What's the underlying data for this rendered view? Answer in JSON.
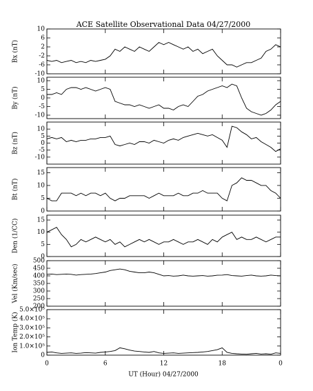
{
  "chart_data": [
    {
      "type": "line",
      "title": "ACE Satellite Observational Data   04/27/2000",
      "ylabel": "Bx (nT)",
      "xlim": [
        0,
        24
      ],
      "ylim": [
        -10,
        10
      ],
      "yticks": [
        -10,
        -6,
        -2,
        2,
        6,
        10
      ],
      "x": [
        0,
        0.5,
        1,
        1.5,
        2,
        2.5,
        3,
        3.5,
        4,
        4.5,
        5,
        5.5,
        6,
        6.5,
        7,
        7.5,
        8,
        8.5,
        9,
        9.5,
        10,
        10.5,
        11,
        11.5,
        12,
        12.5,
        13,
        13.5,
        14,
        14.5,
        15,
        15.5,
        16,
        16.5,
        17,
        17.5,
        18,
        18.5,
        19,
        19.5,
        20,
        20.5,
        21,
        21.5,
        22,
        22.5,
        23,
        23.5,
        24
      ],
      "series": [
        {
          "color": "#000000",
          "values": [
            -4,
            -4.5,
            -4,
            -5,
            -4.5,
            -4,
            -5,
            -4.5,
            -5,
            -4,
            -4.5,
            -4,
            -3.5,
            -2,
            1,
            0,
            2,
            1,
            0,
            2,
            1,
            0,
            2,
            4,
            3,
            4,
            3,
            2,
            1,
            2,
            0,
            1,
            -1,
            0,
            1,
            -2,
            -4,
            -6,
            -6,
            -7,
            -6,
            -5,
            -5,
            -4,
            -3,
            0,
            1,
            3,
            2
          ]
        }
      ]
    },
    {
      "type": "line",
      "ylabel": "By (nT)",
      "xlim": [
        0,
        24
      ],
      "ylim": [
        -12,
        12
      ],
      "yticks": [
        -10,
        -5,
        0,
        5,
        10
      ],
      "x": [
        0,
        0.5,
        1,
        1.5,
        2,
        2.5,
        3,
        3.5,
        4,
        4.5,
        5,
        5.5,
        6,
        6.5,
        7,
        7.5,
        8,
        8.5,
        9,
        9.5,
        10,
        10.5,
        11,
        11.5,
        12,
        12.5,
        13,
        13.5,
        14,
        14.5,
        15,
        15.5,
        16,
        16.5,
        17,
        17.5,
        18,
        18.5,
        19,
        19.5,
        20,
        20.5,
        21,
        21.5,
        22,
        22.5,
        23,
        23.5,
        24
      ],
      "series": [
        {
          "color": "#000000",
          "values": [
            2,
            2,
            3,
            2,
            5,
            6,
            6,
            5,
            6,
            5,
            4,
            5,
            6,
            5,
            -2,
            -3,
            -4,
            -4,
            -5,
            -4,
            -5,
            -6,
            -5,
            -4,
            -6,
            -6,
            -7,
            -5,
            -4,
            -5,
            -2,
            1,
            2,
            4,
            5,
            6,
            7,
            6,
            8,
            7,
            0,
            -6,
            -8,
            -9,
            -10,
            -9,
            -7,
            -4,
            -2
          ]
        }
      ]
    },
    {
      "type": "line",
      "ylabel": "Bz (nT)",
      "xlim": [
        0,
        24
      ],
      "ylim": [
        -15,
        15
      ],
      "yticks": [
        -10,
        -5,
        0,
        5,
        10
      ],
      "x": [
        0,
        0.5,
        1,
        1.5,
        2,
        2.5,
        3,
        3.5,
        4,
        4.5,
        5,
        5.5,
        6,
        6.5,
        7,
        7.5,
        8,
        8.5,
        9,
        9.5,
        10,
        10.5,
        11,
        11.5,
        12,
        12.5,
        13,
        13.5,
        14,
        14.5,
        15,
        15.5,
        16,
        16.5,
        17,
        17.5,
        18,
        18.5,
        19,
        19.5,
        20,
        20.5,
        21,
        21.5,
        22,
        22.5,
        23,
        23.5,
        24
      ],
      "series": [
        {
          "color": "#000000",
          "values": [
            3,
            4,
            3,
            4,
            1,
            2,
            1,
            2,
            2,
            3,
            3,
            4,
            4,
            5,
            -1,
            -2,
            -1,
            0,
            -1,
            1,
            1,
            0,
            2,
            1,
            0,
            2,
            3,
            2,
            4,
            5,
            6,
            7,
            6,
            5,
            6,
            4,
            2,
            -3,
            12,
            11,
            8,
            6,
            3,
            4,
            1,
            -1,
            -3,
            -6,
            -4
          ]
        }
      ]
    },
    {
      "type": "line",
      "ylabel": "Bt (nT)",
      "xlim": [
        0,
        24
      ],
      "ylim": [
        0,
        17
      ],
      "yticks": [
        0,
        5,
        10,
        15
      ],
      "x": [
        0,
        0.5,
        1,
        1.5,
        2,
        2.5,
        3,
        3.5,
        4,
        4.5,
        5,
        5.5,
        6,
        6.5,
        7,
        7.5,
        8,
        8.5,
        9,
        9.5,
        10,
        10.5,
        11,
        11.5,
        12,
        12.5,
        13,
        13.5,
        14,
        14.5,
        15,
        15.5,
        16,
        16.5,
        17,
        17.5,
        18,
        18.5,
        19,
        19.5,
        20,
        20.5,
        21,
        21.5,
        22,
        22.5,
        23,
        23.5,
        24
      ],
      "series": [
        {
          "color": "#000000",
          "values": [
            5,
            4,
            4,
            7,
            7,
            7,
            6,
            7,
            6,
            7,
            7,
            6,
            7,
            5,
            4,
            5,
            5,
            6,
            6,
            6,
            6,
            5,
            6,
            7,
            6,
            6,
            6,
            7,
            6,
            6,
            7,
            7,
            8,
            7,
            7,
            7,
            5,
            4,
            10,
            11,
            13,
            12,
            12,
            11,
            10,
            10,
            8,
            7,
            5
          ]
        }
      ]
    },
    {
      "type": "line",
      "ylabel": "Den (1/CC)",
      "xlim": [
        0,
        24
      ],
      "ylim": [
        0,
        17
      ],
      "yticks": [
        0,
        5,
        10,
        15
      ],
      "x": [
        0,
        0.5,
        1,
        1.5,
        2,
        2.5,
        3,
        3.5,
        4,
        4.5,
        5,
        5.5,
        6,
        6.5,
        7,
        7.5,
        8,
        8.5,
        9,
        9.5,
        10,
        10.5,
        11,
        11.5,
        12,
        12.5,
        13,
        13.5,
        14,
        14.5,
        15,
        15.5,
        16,
        16.5,
        17,
        17.5,
        18,
        18.5,
        19,
        19.5,
        20,
        20.5,
        21,
        21.5,
        22,
        22.5,
        23,
        23.5,
        24
      ],
      "series": [
        {
          "color": "#000000",
          "values": [
            10,
            11,
            12,
            9,
            7,
            4,
            5,
            7,
            6,
            7,
            8,
            7,
            6,
            7,
            5,
            6,
            4,
            5,
            6,
            7,
            6,
            7,
            6,
            5,
            6,
            6,
            7,
            6,
            5,
            6,
            6,
            7,
            6,
            5,
            7,
            6,
            8,
            9,
            10,
            7,
            8,
            7,
            7,
            8,
            7,
            6,
            7,
            8,
            8
          ]
        }
      ]
    },
    {
      "type": "line",
      "ylabel": "Vel (Km/sec)",
      "xlim": [
        0,
        24
      ],
      "ylim": [
        200,
        500
      ],
      "yticks": [
        200,
        250,
        300,
        350,
        400,
        450,
        500
      ],
      "x": [
        0,
        0.5,
        1,
        1.5,
        2,
        2.5,
        3,
        3.5,
        4,
        4.5,
        5,
        5.5,
        6,
        6.5,
        7,
        7.5,
        8,
        8.5,
        9,
        9.5,
        10,
        10.5,
        11,
        11.5,
        12,
        12.5,
        13,
        13.5,
        14,
        14.5,
        15,
        15.5,
        16,
        16.5,
        17,
        17.5,
        18,
        18.5,
        19,
        19.5,
        20,
        20.5,
        21,
        21.5,
        22,
        22.5,
        23,
        23.5,
        24
      ],
      "series": [
        {
          "color": "#000000",
          "values": [
            410,
            412,
            408,
            410,
            412,
            410,
            405,
            408,
            410,
            412,
            415,
            420,
            425,
            435,
            440,
            445,
            440,
            430,
            425,
            420,
            420,
            425,
            420,
            410,
            400,
            402,
            398,
            400,
            405,
            400,
            398,
            400,
            402,
            398,
            400,
            404,
            405,
            408,
            402,
            400,
            398,
            402,
            405,
            400,
            398,
            400,
            405,
            402,
            400
          ]
        }
      ]
    },
    {
      "type": "line",
      "ylabel": "Ion Temp (K)",
      "xlabel": "UT (Hour)   04/27/2000",
      "xlim": [
        0,
        24
      ],
      "ylim": [
        0,
        500000
      ],
      "yticks": [
        0,
        {
          "value": 100000,
          "label": "1.0×10⁵"
        },
        {
          "value": 200000,
          "label": "2.0×10⁵"
        },
        {
          "value": 300000,
          "label": "3.0×10⁵"
        },
        {
          "value": 400000,
          "label": "4.0×10⁵"
        },
        {
          "value": 500000,
          "label": "5.0×10⁵"
        }
      ],
      "xticks": [
        0,
        6,
        12,
        18,
        {
          "value": 24,
          "label": "0"
        }
      ],
      "x": [
        0,
        0.5,
        1,
        1.5,
        2,
        2.5,
        3,
        3.5,
        4,
        4.5,
        5,
        5.5,
        6,
        6.5,
        7,
        7.5,
        8,
        8.5,
        9,
        9.5,
        10,
        10.5,
        11,
        11.5,
        12,
        12.5,
        13,
        13.5,
        14,
        14.5,
        15,
        15.5,
        16,
        16.5,
        17,
        17.5,
        18,
        18.5,
        19,
        19.5,
        20,
        20.5,
        21,
        21.5,
        22,
        22.5,
        23,
        23.5,
        24
      ],
      "series": [
        {
          "color": "#000000",
          "values": [
            30000,
            35000,
            25000,
            20000,
            22000,
            25000,
            20000,
            22000,
            28000,
            25000,
            22000,
            30000,
            35000,
            40000,
            50000,
            80000,
            70000,
            55000,
            45000,
            40000,
            35000,
            30000,
            40000,
            25000,
            20000,
            22000,
            25000,
            20000,
            22000,
            25000,
            28000,
            30000,
            35000,
            40000,
            50000,
            60000,
            80000,
            30000,
            20000,
            15000,
            12000,
            10000,
            15000,
            20000,
            12000,
            15000,
            10000,
            25000,
            20000
          ]
        }
      ]
    }
  ]
}
